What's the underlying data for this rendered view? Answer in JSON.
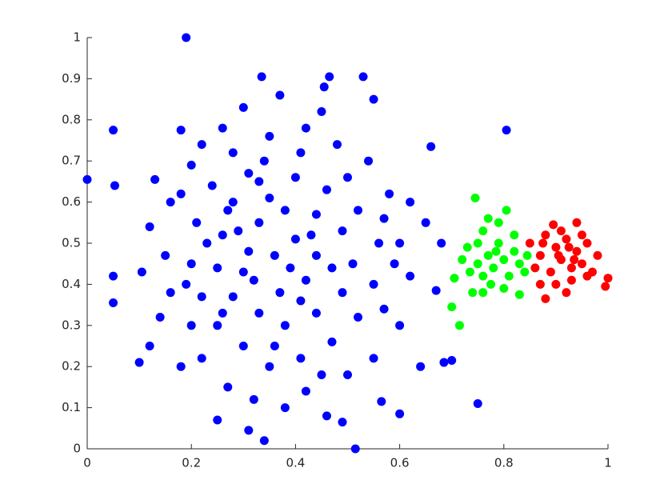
{
  "chart_data": {
    "type": "scatter",
    "xlim": [
      0,
      1
    ],
    "ylim": [
      0,
      1
    ],
    "xticks": [
      0,
      0.2,
      0.4,
      0.6,
      0.8,
      1
    ],
    "yticks": [
      0,
      0.1,
      0.2,
      0.3,
      0.4,
      0.5,
      0.6,
      0.7,
      0.8,
      0.9,
      1
    ],
    "series": [
      {
        "color": "#0000ff",
        "x": [
          0,
          0.05,
          0.053,
          0.05,
          0.05,
          0.19,
          0.335,
          0.53,
          0.455,
          0.465,
          0.515,
          0.34,
          0.31,
          0.25,
          0.1,
          0.12,
          0.105,
          0.75,
          0.805,
          0.7,
          0.685,
          0.66,
          0.6,
          0.565,
          0.49,
          0.46,
          0.14,
          0.12,
          0.18,
          0.13,
          0.18,
          0.62,
          0.65,
          0.68,
          0.67,
          0.64,
          0.55,
          0.45,
          0.37,
          0.3,
          0.26,
          0.22,
          0.2,
          0.16,
          0.15,
          0.16,
          0.2,
          0.22,
          0.27,
          0.32,
          0.38,
          0.42,
          0.5,
          0.55,
          0.6,
          0.62,
          0.6,
          0.58,
          0.54,
          0.48,
          0.42,
          0.35,
          0.28,
          0.24,
          0.21,
          0.2,
          0.22,
          0.25,
          0.3,
          0.35,
          0.41,
          0.47,
          0.52,
          0.55,
          0.56,
          0.52,
          0.46,
          0.4,
          0.33,
          0.28,
          0.26,
          0.25,
          0.28,
          0.33,
          0.38,
          0.44,
          0.49,
          0.51,
          0.49,
          0.44,
          0.38,
          0.33,
          0.31,
          0.32,
          0.37,
          0.42,
          0.44,
          0.4,
          0.36,
          0.39,
          0.29,
          0.35,
          0.43,
          0.47,
          0.41,
          0.3,
          0.23,
          0.27,
          0.34,
          0.41,
          0.5,
          0.57,
          0.59,
          0.57,
          0.45,
          0.36,
          0.26,
          0.19,
          0.18,
          0.31
        ],
        "values": [
          0.655,
          0.775,
          0.64,
          0.42,
          0.355,
          1,
          0.905,
          0.905,
          0.88,
          0.905,
          0,
          0.02,
          0.045,
          0.07,
          0.21,
          0.25,
          0.43,
          0.11,
          0.775,
          0.215,
          0.21,
          0.735,
          0.085,
          0.115,
          0.065,
          0.08,
          0.32,
          0.54,
          0.2,
          0.655,
          0.775,
          0.6,
          0.55,
          0.5,
          0.385,
          0.2,
          0.85,
          0.82,
          0.86,
          0.83,
          0.78,
          0.74,
          0.69,
          0.6,
          0.47,
          0.38,
          0.3,
          0.22,
          0.15,
          0.12,
          0.1,
          0.14,
          0.18,
          0.22,
          0.3,
          0.42,
          0.5,
          0.62,
          0.7,
          0.74,
          0.78,
          0.76,
          0.72,
          0.64,
          0.55,
          0.45,
          0.37,
          0.3,
          0.25,
          0.2,
          0.22,
          0.26,
          0.32,
          0.4,
          0.5,
          0.58,
          0.63,
          0.66,
          0.65,
          0.6,
          0.52,
          0.44,
          0.37,
          0.33,
          0.3,
          0.33,
          0.38,
          0.45,
          0.53,
          0.57,
          0.58,
          0.55,
          0.48,
          0.41,
          0.38,
          0.41,
          0.47,
          0.51,
          0.47,
          0.44,
          0.53,
          0.61,
          0.52,
          0.44,
          0.36,
          0.43,
          0.5,
          0.58,
          0.7,
          0.72,
          0.66,
          0.56,
          0.45,
          0.34,
          0.18,
          0.25,
          0.33,
          0.4,
          0.62,
          0.67
        ]
      },
      {
        "color": "#00ff00",
        "x": [
          0.7,
          0.715,
          0.745,
          0.805,
          0.83,
          0.74,
          0.705,
          0.72,
          0.73,
          0.75,
          0.76,
          0.77,
          0.78,
          0.79,
          0.8,
          0.81,
          0.82,
          0.83,
          0.84,
          0.76,
          0.775,
          0.79,
          0.75,
          0.735,
          0.82,
          0.8,
          0.77,
          0.76,
          0.845,
          0.785
        ],
        "values": [
          0.345,
          0.3,
          0.61,
          0.58,
          0.375,
          0.38,
          0.415,
          0.46,
          0.49,
          0.5,
          0.53,
          0.47,
          0.44,
          0.5,
          0.46,
          0.42,
          0.48,
          0.45,
          0.43,
          0.42,
          0.4,
          0.55,
          0.45,
          0.43,
          0.52,
          0.39,
          0.56,
          0.38,
          0.47,
          0.48
        ]
      },
      {
        "color": "#ff0000",
        "x": [
          1,
          0.995,
          0.88,
          0.94,
          0.85,
          0.86,
          0.87,
          0.88,
          0.89,
          0.9,
          0.91,
          0.92,
          0.93,
          0.94,
          0.95,
          0.96,
          0.97,
          0.98,
          0.9,
          0.92,
          0.87,
          0.895,
          0.91,
          0.93,
          0.95,
          0.96,
          0.935,
          0.905,
          0.925,
          0.875
        ],
        "values": [
          0.415,
          0.395,
          0.365,
          0.55,
          0.5,
          0.44,
          0.47,
          0.52,
          0.43,
          0.49,
          0.46,
          0.51,
          0.44,
          0.48,
          0.45,
          0.5,
          0.43,
          0.47,
          0.4,
          0.38,
          0.4,
          0.545,
          0.53,
          0.41,
          0.52,
          0.42,
          0.46,
          0.47,
          0.49,
          0.5
        ]
      }
    ]
  }
}
